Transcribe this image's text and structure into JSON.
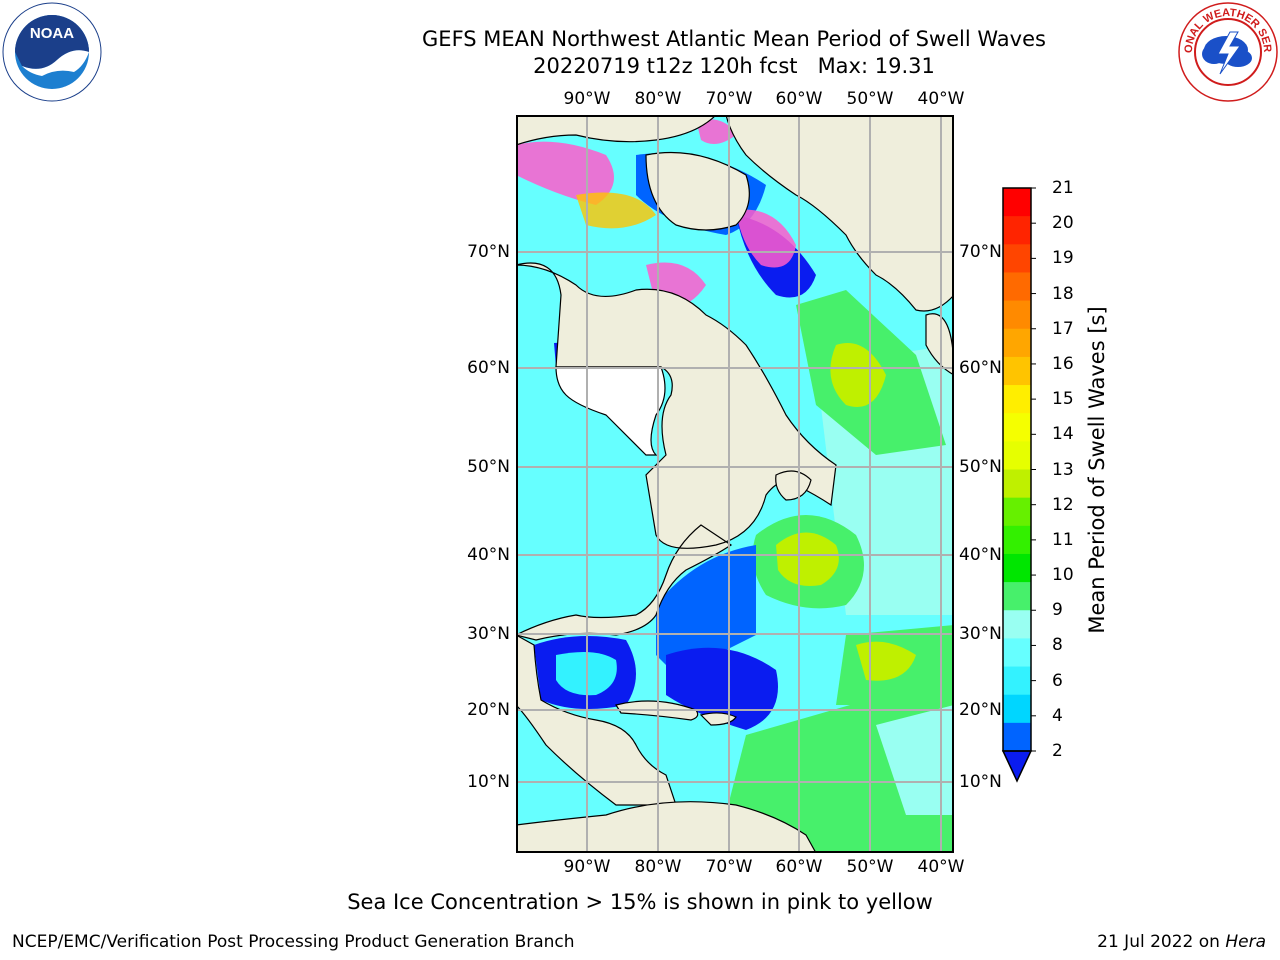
{
  "title": {
    "line1": "GEFS MEAN Northwest Atlantic Mean Period of Swell Waves",
    "line2_run": "20220719 t12z 120h fcst",
    "line2_max": "Max: 19.31"
  },
  "logos": {
    "left": {
      "name": "noaa-logo",
      "text": "NOAA"
    },
    "right": {
      "name": "nws-logo",
      "text": "NATIONAL WEATHER SERVICE"
    }
  },
  "map": {
    "projection": "mercator",
    "lon_ticks": [
      "90°W",
      "80°W",
      "70°W",
      "60°W",
      "50°W",
      "40°W"
    ],
    "lat_ticks": [
      "70°N",
      "60°N",
      "50°N",
      "40°N",
      "30°N",
      "20°N",
      "10°N"
    ],
    "land_color": "#efeedc",
    "gridline_color": "#b0b0b0"
  },
  "colorbar": {
    "title": "Mean Period of Swell Waves [s]",
    "ticks": [
      "2",
      "4",
      "6",
      "8",
      "9",
      "10",
      "11",
      "12",
      "13",
      "14",
      "15",
      "16",
      "17",
      "18",
      "19",
      "20",
      "21"
    ],
    "colors": [
      "#0a1cf0",
      "#0064ff",
      "#00d6ff",
      "#33f2ff",
      "#66ffff",
      "#99fff2",
      "#47f06b",
      "#00e600",
      "#33f000",
      "#66f000",
      "#bff000",
      "#e6ff00",
      "#f5ff00",
      "#ffee00",
      "#ffc400",
      "#ffa600",
      "#ff8a00",
      "#ff6a00",
      "#ff4500",
      "#ff2400",
      "#ff0000"
    ]
  },
  "footnote": "Sea Ice Concentration > 15% is shown in pink to yellow",
  "footer": {
    "left": "NCEP/EMC/Verification Post Processing Product Generation Branch",
    "right_date": "21 Jul 2022 on",
    "right_host": "Hera"
  }
}
